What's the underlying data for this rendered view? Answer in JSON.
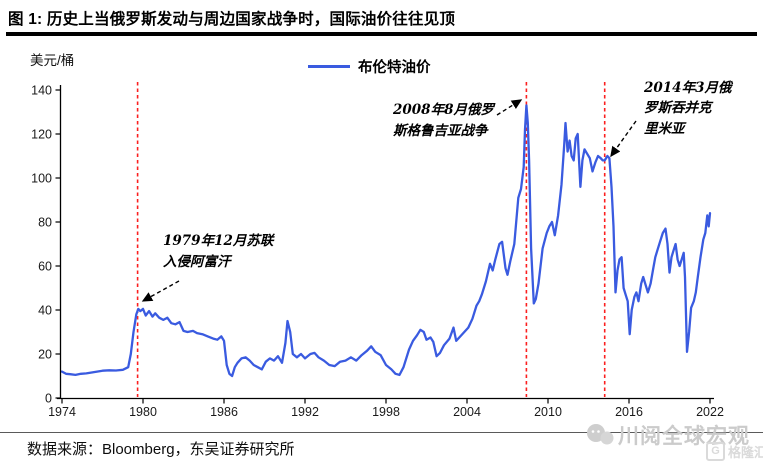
{
  "header": {
    "title": "图 1:  历史上当俄罗斯发动与周边国家战争时，国际油价往往见顶"
  },
  "chart": {
    "unit_label": "美元/桶",
    "legend": {
      "label": "布伦特油价",
      "color": "#3a5be0"
    }
  },
  "annotations": {
    "afghanistan": "1979年12月苏联\n入侵阿富汗",
    "georgia": "2008年8月俄罗\n斯格鲁吉亚战争",
    "crimea": "2014年3月俄\n罗斯吞并克\n里米亚"
  },
  "footer": {
    "source": "数据来源：Bloomberg，东吴证券研究所"
  },
  "watermarks": {
    "wechat": "川阅全球宏观",
    "corner_logo": "G",
    "corner": "格隆汇"
  },
  "chart_data": {
    "type": "line",
    "title": "布伦特油价",
    "xlabel": "",
    "ylabel": "美元/桶",
    "xlim": [
      1974,
      2022
    ],
    "ylim": [
      0,
      140
    ],
    "x_ticks": [
      1974,
      1980,
      1986,
      1992,
      1998,
      2004,
      2010,
      2016,
      2022
    ],
    "y_ticks": [
      0,
      20,
      40,
      60,
      80,
      100,
      120,
      140
    ],
    "grid": false,
    "legend_position": "top-center",
    "event_lines": [
      {
        "x": 1979.6,
        "label": "1979年12月苏联入侵阿富汗",
        "color": "#fb1f1f",
        "style": "dashed"
      },
      {
        "x": 2008.4,
        "label": "2008年8月俄罗斯格鲁吉亚战争",
        "color": "#fb1f1f",
        "style": "dashed"
      },
      {
        "x": 2014.2,
        "label": "2014年3月俄罗斯吞并克里米亚",
        "color": "#fb1f1f",
        "style": "dashed"
      }
    ],
    "series": [
      {
        "name": "布伦特油价",
        "color": "#3a5be0",
        "points": [
          [
            1974.0,
            12
          ],
          [
            1974.3,
            11
          ],
          [
            1974.6,
            10.8
          ],
          [
            1975.0,
            10.5
          ],
          [
            1975.4,
            11
          ],
          [
            1975.8,
            11.2
          ],
          [
            1976.2,
            11.6
          ],
          [
            1976.6,
            12
          ],
          [
            1977.0,
            12.4
          ],
          [
            1977.5,
            12.6
          ],
          [
            1978.0,
            12.5
          ],
          [
            1978.5,
            12.8
          ],
          [
            1978.9,
            14
          ],
          [
            1979.1,
            20
          ],
          [
            1979.3,
            30
          ],
          [
            1979.5,
            38
          ],
          [
            1979.65,
            40.5
          ],
          [
            1979.8,
            39.5
          ],
          [
            1980.0,
            40.5
          ],
          [
            1980.2,
            37.5
          ],
          [
            1980.45,
            39.5
          ],
          [
            1980.7,
            37
          ],
          [
            1980.9,
            38.5
          ],
          [
            1981.2,
            36.5
          ],
          [
            1981.5,
            35.5
          ],
          [
            1981.8,
            36.5
          ],
          [
            1982.1,
            34
          ],
          [
            1982.4,
            33.5
          ],
          [
            1982.7,
            34.5
          ],
          [
            1983.0,
            30.5
          ],
          [
            1983.3,
            30
          ],
          [
            1983.7,
            30.5
          ],
          [
            1984.0,
            29.5
          ],
          [
            1984.4,
            29
          ],
          [
            1984.8,
            28
          ],
          [
            1985.2,
            27
          ],
          [
            1985.5,
            26.5
          ],
          [
            1985.8,
            28
          ],
          [
            1986.0,
            26
          ],
          [
            1986.2,
            15
          ],
          [
            1986.4,
            11
          ],
          [
            1986.6,
            10
          ],
          [
            1986.8,
            14
          ],
          [
            1987.0,
            16
          ],
          [
            1987.3,
            18
          ],
          [
            1987.6,
            18.5
          ],
          [
            1987.9,
            17
          ],
          [
            1988.2,
            15
          ],
          [
            1988.5,
            14
          ],
          [
            1988.8,
            13
          ],
          [
            1989.1,
            16.5
          ],
          [
            1989.4,
            18
          ],
          [
            1989.7,
            17
          ],
          [
            1990.0,
            19
          ],
          [
            1990.3,
            16
          ],
          [
            1990.55,
            25
          ],
          [
            1990.7,
            35
          ],
          [
            1990.9,
            30
          ],
          [
            1991.1,
            20
          ],
          [
            1991.4,
            18.5
          ],
          [
            1991.7,
            20
          ],
          [
            1992.0,
            18
          ],
          [
            1992.4,
            20
          ],
          [
            1992.7,
            20.5
          ],
          [
            1993.0,
            18.5
          ],
          [
            1993.4,
            17
          ],
          [
            1993.8,
            15
          ],
          [
            1994.2,
            14.5
          ],
          [
            1994.6,
            16.5
          ],
          [
            1995.0,
            17
          ],
          [
            1995.4,
            18.5
          ],
          [
            1995.8,
            17
          ],
          [
            1996.2,
            19.5
          ],
          [
            1996.6,
            21.5
          ],
          [
            1996.9,
            23.5
          ],
          [
            1997.2,
            21
          ],
          [
            1997.6,
            19.5
          ],
          [
            1998.0,
            15
          ],
          [
            1998.4,
            13
          ],
          [
            1998.7,
            11
          ],
          [
            1999.0,
            10.5
          ],
          [
            1999.3,
            14
          ],
          [
            1999.7,
            22
          ],
          [
            2000.0,
            26
          ],
          [
            2000.3,
            28.5
          ],
          [
            2000.55,
            31
          ],
          [
            2000.8,
            30
          ],
          [
            2001.0,
            26.5
          ],
          [
            2001.3,
            27.5
          ],
          [
            2001.5,
            25.5
          ],
          [
            2001.75,
            19
          ],
          [
            2002.0,
            20.5
          ],
          [
            2002.3,
            24
          ],
          [
            2002.7,
            27
          ],
          [
            2003.0,
            32
          ],
          [
            2003.2,
            26
          ],
          [
            2003.5,
            28
          ],
          [
            2003.8,
            30
          ],
          [
            2004.1,
            32
          ],
          [
            2004.4,
            36
          ],
          [
            2004.7,
            42
          ],
          [
            2004.9,
            44
          ],
          [
            2005.1,
            47
          ],
          [
            2005.4,
            53
          ],
          [
            2005.7,
            61
          ],
          [
            2005.9,
            58
          ],
          [
            2006.1,
            63
          ],
          [
            2006.4,
            70
          ],
          [
            2006.6,
            71
          ],
          [
            2006.85,
            59
          ],
          [
            2007.0,
            56
          ],
          [
            2007.2,
            62
          ],
          [
            2007.5,
            70
          ],
          [
            2007.8,
            91
          ],
          [
            2008.0,
            95
          ],
          [
            2008.2,
            105
          ],
          [
            2008.3,
            122
          ],
          [
            2008.4,
            133
          ],
          [
            2008.5,
            125
          ],
          [
            2008.6,
            108
          ],
          [
            2008.75,
            68
          ],
          [
            2008.95,
            43
          ],
          [
            2009.1,
            45
          ],
          [
            2009.3,
            52
          ],
          [
            2009.6,
            68
          ],
          [
            2009.9,
            75
          ],
          [
            2010.1,
            78
          ],
          [
            2010.3,
            80
          ],
          [
            2010.5,
            74
          ],
          [
            2010.75,
            83
          ],
          [
            2011.0,
            97
          ],
          [
            2011.2,
            115
          ],
          [
            2011.3,
            125
          ],
          [
            2011.45,
            112
          ],
          [
            2011.6,
            117
          ],
          [
            2011.75,
            110
          ],
          [
            2011.9,
            108
          ],
          [
            2012.05,
            118
          ],
          [
            2012.2,
            120
          ],
          [
            2012.4,
            96
          ],
          [
            2012.55,
            108
          ],
          [
            2012.7,
            113
          ],
          [
            2012.9,
            111
          ],
          [
            2013.1,
            109
          ],
          [
            2013.3,
            103
          ],
          [
            2013.5,
            107
          ],
          [
            2013.7,
            110
          ],
          [
            2013.9,
            109
          ],
          [
            2014.05,
            108
          ],
          [
            2014.2,
            108
          ],
          [
            2014.4,
            110
          ],
          [
            2014.55,
            109
          ],
          [
            2014.7,
            96
          ],
          [
            2014.85,
            78
          ],
          [
            2015.0,
            48
          ],
          [
            2015.15,
            58
          ],
          [
            2015.3,
            63
          ],
          [
            2015.45,
            64
          ],
          [
            2015.6,
            50
          ],
          [
            2015.75,
            47
          ],
          [
            2015.9,
            44
          ],
          [
            2016.05,
            29
          ],
          [
            2016.2,
            40
          ],
          [
            2016.4,
            46
          ],
          [
            2016.55,
            48
          ],
          [
            2016.7,
            44
          ],
          [
            2016.9,
            52
          ],
          [
            2017.05,
            55
          ],
          [
            2017.2,
            52
          ],
          [
            2017.4,
            48
          ],
          [
            2017.6,
            52
          ],
          [
            2017.8,
            59
          ],
          [
            2017.95,
            64
          ],
          [
            2018.1,
            67
          ],
          [
            2018.3,
            71
          ],
          [
            2018.5,
            75
          ],
          [
            2018.7,
            77
          ],
          [
            2018.85,
            70
          ],
          [
            2019.0,
            57
          ],
          [
            2019.15,
            64
          ],
          [
            2019.3,
            67
          ],
          [
            2019.45,
            70
          ],
          [
            2019.6,
            63
          ],
          [
            2019.75,
            60
          ],
          [
            2019.9,
            63
          ],
          [
            2020.05,
            66
          ],
          [
            2020.15,
            55
          ],
          [
            2020.3,
            21
          ],
          [
            2020.45,
            30
          ],
          [
            2020.6,
            41
          ],
          [
            2020.8,
            44
          ],
          [
            2020.95,
            48
          ],
          [
            2021.1,
            55
          ],
          [
            2021.3,
            64
          ],
          [
            2021.5,
            72
          ],
          [
            2021.65,
            75
          ],
          [
            2021.8,
            83
          ],
          [
            2021.9,
            78
          ],
          [
            2022.0,
            84
          ]
        ]
      }
    ]
  }
}
